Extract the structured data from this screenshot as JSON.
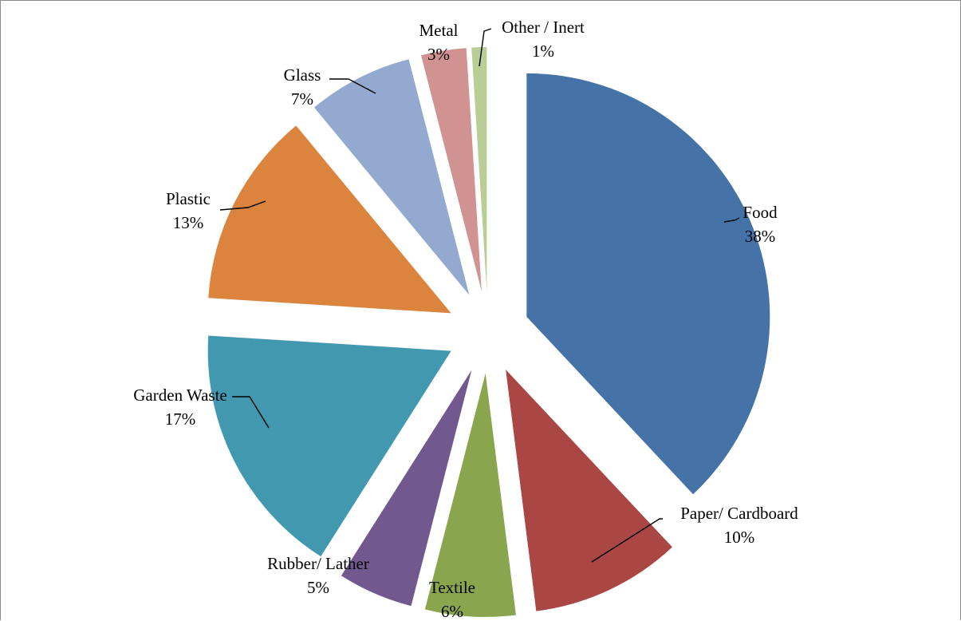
{
  "chart_data": {
    "type": "pie",
    "title": "",
    "start_angle_deg": 0,
    "direction": "clockwise",
    "exploded": true,
    "legend": "none",
    "slices": [
      {
        "name": "Food",
        "value": 38,
        "label": "38%",
        "color": "#4572a7"
      },
      {
        "name": "Paper/ Cardboard",
        "value": 10,
        "label": "10%",
        "color": "#aa4643"
      },
      {
        "name": "Textile",
        "value": 6,
        "label": "6%",
        "color": "#89a54e"
      },
      {
        "name": "Rubber/ Lather",
        "value": 5,
        "label": "5%",
        "color": "#71588f"
      },
      {
        "name": "Garden Waste",
        "value": 17,
        "label": "17%",
        "color": "#4198af"
      },
      {
        "name": "Plastic",
        "value": 13,
        "label": "13%",
        "color": "#db843d"
      },
      {
        "name": "Glass",
        "value": 7,
        "label": "7%",
        "color": "#93a9cf"
      },
      {
        "name": "Metal",
        "value": 3,
        "label": "3%",
        "color": "#d19392"
      },
      {
        "name": "Other / Inert",
        "value": 1,
        "label": "1%",
        "color": "#b9cd96"
      }
    ]
  }
}
